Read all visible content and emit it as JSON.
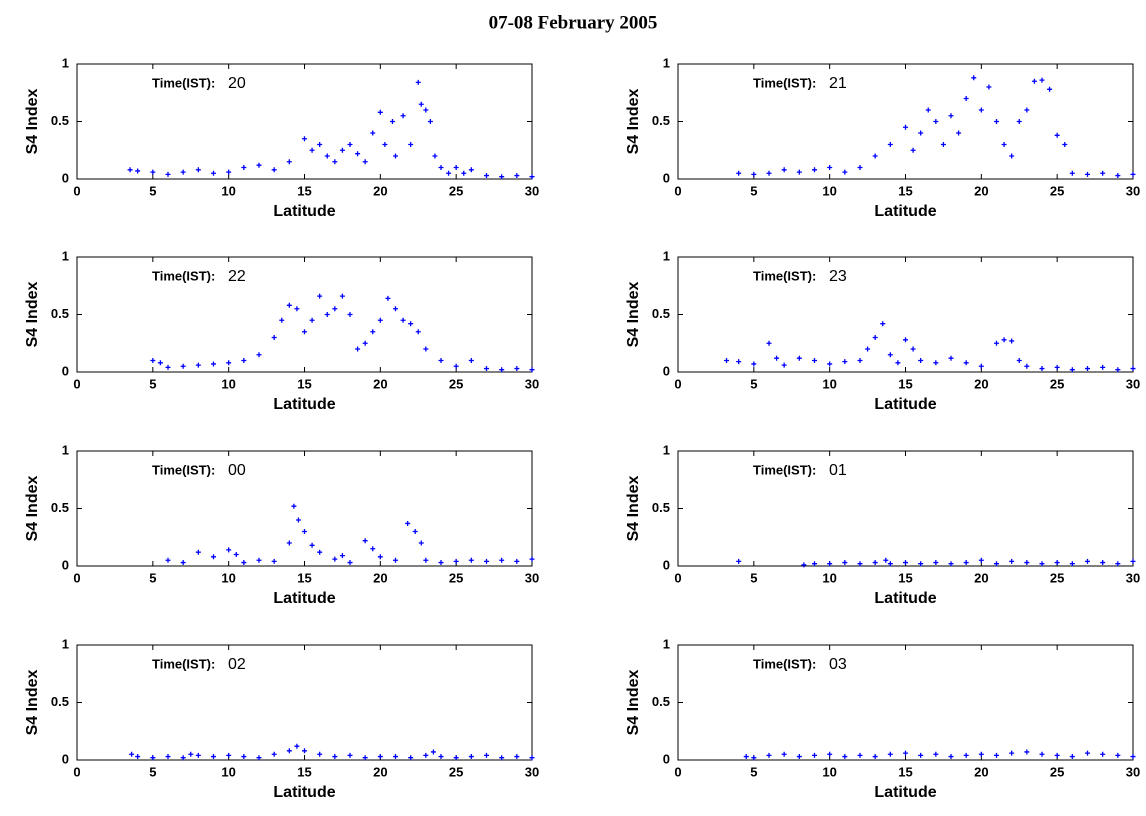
{
  "title": "07-08 February 2005",
  "chart_data": [
    {
      "type": "scatter",
      "annotation": "Time(IST):",
      "time": "20",
      "xlabel": "Latitude",
      "ylabel": "S4 Index",
      "color": "#0000ff",
      "xlim": [
        0,
        30
      ],
      "ylim": [
        0,
        1
      ],
      "xticks": [
        0,
        5,
        10,
        15,
        20,
        25,
        30
      ],
      "yticks": [
        0,
        0.5,
        1
      ],
      "x": [
        3.5,
        4,
        5,
        6,
        7,
        8,
        9,
        10,
        11,
        12,
        13,
        14,
        15,
        15.5,
        16,
        16.5,
        17,
        17.5,
        18,
        18.5,
        19,
        19.5,
        20,
        20.3,
        20.8,
        21,
        21.5,
        22,
        22.5,
        22.7,
        23,
        23.3,
        23.6,
        24,
        24.5,
        25,
        25.5,
        26,
        27,
        28,
        29,
        30
      ],
      "values": [
        0.08,
        0.07,
        0.06,
        0.04,
        0.06,
        0.08,
        0.05,
        0.06,
        0.1,
        0.12,
        0.08,
        0.15,
        0.35,
        0.25,
        0.3,
        0.2,
        0.15,
        0.25,
        0.3,
        0.22,
        0.15,
        0.4,
        0.58,
        0.3,
        0.5,
        0.2,
        0.55,
        0.3,
        0.84,
        0.65,
        0.6,
        0.5,
        0.2,
        0.1,
        0.05,
        0.1,
        0.05,
        0.08,
        0.03,
        0.02,
        0.03,
        0.02
      ]
    },
    {
      "type": "scatter",
      "annotation": "Time(IST):",
      "time": "21",
      "xlabel": "Latitude",
      "ylabel": "S4 Index",
      "color": "#0000ff",
      "xlim": [
        0,
        30
      ],
      "ylim": [
        0,
        1
      ],
      "xticks": [
        0,
        5,
        10,
        15,
        20,
        25,
        30
      ],
      "yticks": [
        0,
        0.5,
        1
      ],
      "x": [
        4,
        5,
        6,
        7,
        8,
        9,
        10,
        11,
        12,
        13,
        14,
        15,
        15.5,
        16,
        16.5,
        17,
        17.5,
        18,
        18.5,
        19,
        19.5,
        20,
        20.5,
        21,
        21.5,
        22,
        22.5,
        23,
        23.5,
        24,
        24.5,
        25,
        25.5,
        26,
        27,
        28,
        29,
        30
      ],
      "values": [
        0.05,
        0.04,
        0.05,
        0.08,
        0.06,
        0.08,
        0.1,
        0.06,
        0.1,
        0.2,
        0.3,
        0.45,
        0.25,
        0.4,
        0.6,
        0.5,
        0.3,
        0.55,
        0.4,
        0.7,
        0.88,
        0.6,
        0.8,
        0.5,
        0.3,
        0.2,
        0.5,
        0.6,
        0.85,
        0.86,
        0.78,
        0.38,
        0.3,
        0.05,
        0.04,
        0.05,
        0.03,
        0.04
      ]
    },
    {
      "type": "scatter",
      "annotation": "Time(IST):",
      "time": "22",
      "xlabel": "Latitude",
      "ylabel": "S4 Index",
      "color": "#0000ff",
      "xlim": [
        0,
        30
      ],
      "ylim": [
        0,
        1
      ],
      "xticks": [
        0,
        5,
        10,
        15,
        20,
        25,
        30
      ],
      "yticks": [
        0,
        0.5,
        1
      ],
      "x": [
        5,
        5.5,
        6,
        7,
        8,
        9,
        10,
        11,
        12,
        13,
        13.5,
        14,
        14.5,
        15,
        15.5,
        16,
        16.5,
        17,
        17.5,
        18,
        18.5,
        19,
        19.5,
        20,
        20.5,
        21,
        21.5,
        22,
        22.5,
        23,
        24,
        25,
        26,
        27,
        28,
        29,
        30
      ],
      "values": [
        0.1,
        0.08,
        0.04,
        0.05,
        0.06,
        0.07,
        0.08,
        0.1,
        0.15,
        0.3,
        0.45,
        0.58,
        0.55,
        0.35,
        0.45,
        0.66,
        0.5,
        0.55,
        0.66,
        0.5,
        0.2,
        0.25,
        0.35,
        0.45,
        0.64,
        0.55,
        0.45,
        0.42,
        0.35,
        0.2,
        0.1,
        0.05,
        0.1,
        0.03,
        0.02,
        0.03,
        0.02
      ]
    },
    {
      "type": "scatter",
      "annotation": "Time(IST):",
      "time": "23",
      "xlabel": "Latitude",
      "ylabel": "S4 Index",
      "color": "#0000ff",
      "xlim": [
        0,
        30
      ],
      "ylim": [
        0,
        1
      ],
      "xticks": [
        0,
        5,
        10,
        15,
        20,
        25,
        30
      ],
      "yticks": [
        0,
        0.5,
        1
      ],
      "x": [
        3.2,
        4,
        5,
        6,
        6.5,
        7,
        8,
        9,
        10,
        11,
        12,
        12.5,
        13,
        13.5,
        14,
        14.5,
        15,
        15.5,
        16,
        17,
        18,
        19,
        20,
        21,
        21.5,
        22,
        22.5,
        23,
        24,
        25,
        26,
        27,
        28,
        29,
        30
      ],
      "values": [
        0.1,
        0.09,
        0.07,
        0.25,
        0.12,
        0.06,
        0.12,
        0.1,
        0.07,
        0.09,
        0.1,
        0.2,
        0.3,
        0.42,
        0.15,
        0.08,
        0.28,
        0.2,
        0.1,
        0.08,
        0.12,
        0.08,
        0.05,
        0.25,
        0.28,
        0.27,
        0.1,
        0.05,
        0.03,
        0.04,
        0.02,
        0.03,
        0.04,
        0.02,
        0.03
      ]
    },
    {
      "type": "scatter",
      "annotation": "Time(IST):",
      "time": "00",
      "xlabel": "Latitude",
      "ylabel": "S4 Index",
      "color": "#0000ff",
      "xlim": [
        0,
        30
      ],
      "ylim": [
        0,
        1
      ],
      "xticks": [
        0,
        5,
        10,
        15,
        20,
        25,
        30
      ],
      "yticks": [
        0,
        0.5,
        1
      ],
      "x": [
        6,
        7,
        8,
        9,
        10,
        10.5,
        11,
        12,
        13,
        14,
        14.3,
        14.6,
        15,
        15.5,
        16,
        17,
        17.5,
        18,
        19,
        19.5,
        20,
        21,
        21.8,
        22.3,
        22.7,
        23,
        24,
        25,
        26,
        27,
        28,
        29,
        30
      ],
      "values": [
        0.05,
        0.03,
        0.12,
        0.08,
        0.14,
        0.1,
        0.03,
        0.05,
        0.04,
        0.2,
        0.52,
        0.4,
        0.3,
        0.18,
        0.12,
        0.06,
        0.09,
        0.03,
        0.22,
        0.15,
        0.08,
        0.05,
        0.37,
        0.3,
        0.2,
        0.05,
        0.03,
        0.04,
        0.05,
        0.04,
        0.05,
        0.04,
        0.06
      ]
    },
    {
      "type": "scatter",
      "annotation": "Time(IST):",
      "time": "01",
      "xlabel": "Latitude",
      "ylabel": "S4 Index",
      "color": "#0000ff",
      "xlim": [
        0,
        30
      ],
      "ylim": [
        0,
        1
      ],
      "xticks": [
        0,
        5,
        10,
        15,
        20,
        25,
        30
      ],
      "yticks": [
        0,
        0.5,
        1
      ],
      "x": [
        4,
        8.3,
        9,
        10,
        11,
        12,
        13,
        13.7,
        14,
        15,
        16,
        17,
        18,
        19,
        20,
        21,
        22,
        23,
        24,
        25,
        26,
        27,
        28,
        29,
        30
      ],
      "values": [
        0.04,
        0.01,
        0.02,
        0.02,
        0.03,
        0.02,
        0.03,
        0.05,
        0.02,
        0.03,
        0.02,
        0.03,
        0.02,
        0.03,
        0.05,
        0.02,
        0.04,
        0.03,
        0.02,
        0.03,
        0.02,
        0.04,
        0.03,
        0.02,
        0.04
      ]
    },
    {
      "type": "scatter",
      "annotation": "Time(IST):",
      "time": "02",
      "xlabel": "Latitude",
      "ylabel": "S4 Index",
      "color": "#0000ff",
      "xlim": [
        0,
        30
      ],
      "ylim": [
        0,
        1
      ],
      "xticks": [
        0,
        5,
        10,
        15,
        20,
        25,
        30
      ],
      "yticks": [
        0,
        0.5,
        1
      ],
      "x": [
        3.6,
        4,
        5,
        6,
        7,
        7.5,
        8,
        9,
        10,
        11,
        12,
        13,
        14,
        14.5,
        15,
        16,
        17,
        18,
        19,
        20,
        21,
        22,
        23,
        23.5,
        24,
        25,
        26,
        27,
        28,
        29,
        30
      ],
      "values": [
        0.05,
        0.03,
        0.02,
        0.03,
        0.02,
        0.05,
        0.04,
        0.03,
        0.04,
        0.03,
        0.02,
        0.05,
        0.08,
        0.12,
        0.08,
        0.05,
        0.03,
        0.04,
        0.02,
        0.03,
        0.03,
        0.02,
        0.04,
        0.07,
        0.03,
        0.02,
        0.03,
        0.04,
        0.02,
        0.03,
        0.02
      ]
    },
    {
      "type": "scatter",
      "annotation": "Time(IST):",
      "time": "03",
      "xlabel": "Latitude",
      "ylabel": "S4 Index",
      "color": "#0000ff",
      "xlim": [
        0,
        30
      ],
      "ylim": [
        0,
        1
      ],
      "xticks": [
        0,
        5,
        10,
        15,
        20,
        25,
        30
      ],
      "yticks": [
        0,
        0.5,
        1
      ],
      "x": [
        4.5,
        5,
        6,
        7,
        8,
        9,
        10,
        11,
        12,
        13,
        14,
        15,
        16,
        17,
        18,
        19,
        20,
        21,
        22,
        23,
        24,
        25,
        26,
        27,
        28,
        29,
        30
      ],
      "values": [
        0.03,
        0.02,
        0.04,
        0.05,
        0.03,
        0.04,
        0.05,
        0.03,
        0.04,
        0.03,
        0.05,
        0.06,
        0.04,
        0.05,
        0.03,
        0.04,
        0.05,
        0.04,
        0.06,
        0.07,
        0.05,
        0.04,
        0.03,
        0.06,
        0.05,
        0.04,
        0.03
      ]
    }
  ]
}
